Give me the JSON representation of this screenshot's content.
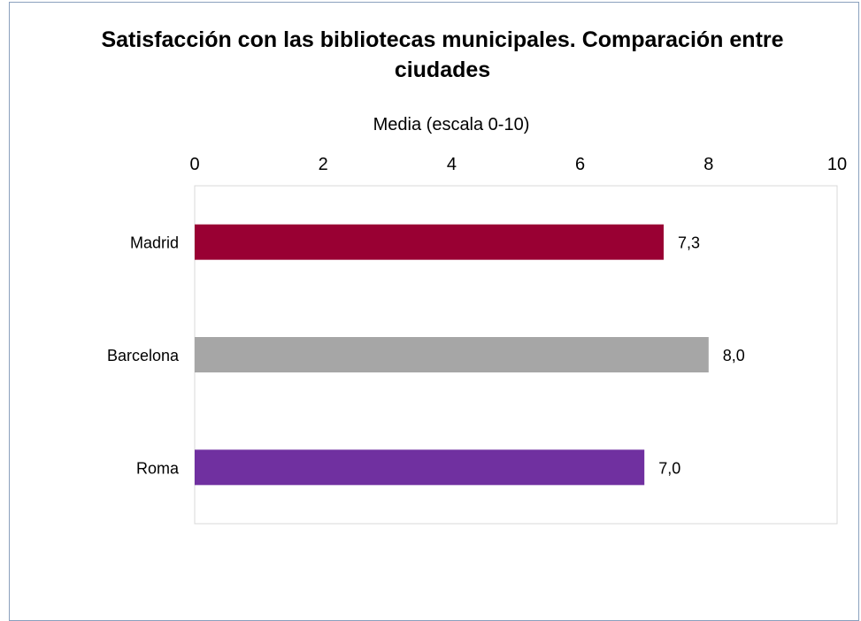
{
  "chart_data": {
    "type": "bar",
    "orientation": "horizontal",
    "title": "Satisfacción con las bibliotecas municipales. Comparación entre ciudades",
    "xlabel": "Media (escala 0-10)",
    "ylabel": "",
    "xlim": [
      0,
      10
    ],
    "x_ticks": [
      "0",
      "2",
      "4",
      "6",
      "8",
      "10"
    ],
    "x_axis_position": "top",
    "grid": false,
    "categories": [
      "Madrid",
      "Barcelona",
      "Roma"
    ],
    "values": [
      7.3,
      8.0,
      7.0
    ],
    "data_labels": [
      "7,3",
      "8,0",
      "7,0"
    ],
    "colors": [
      "#990033",
      "#a6a6a6",
      "#7030a0"
    ]
  }
}
